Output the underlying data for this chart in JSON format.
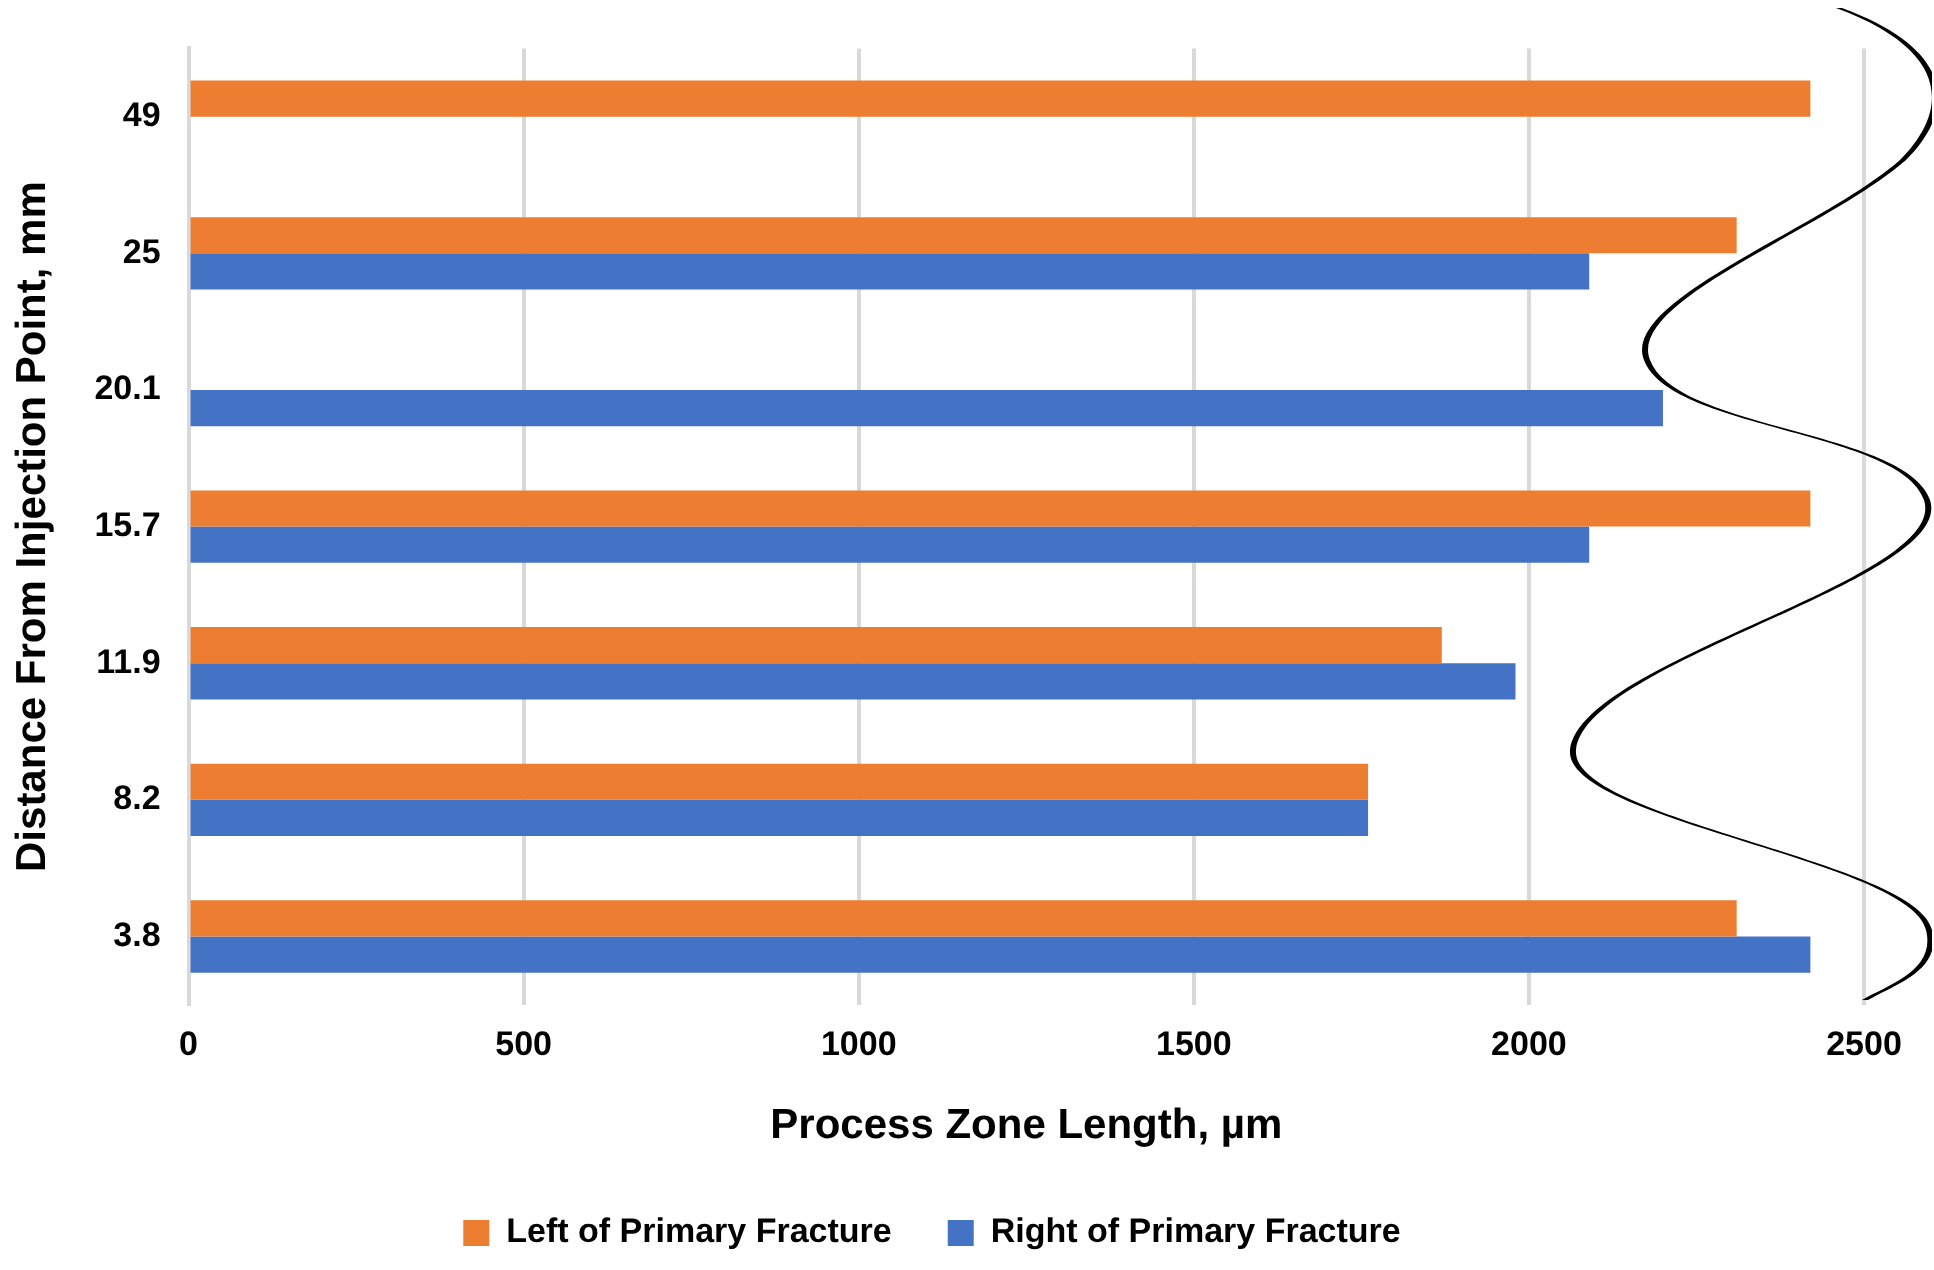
{
  "chart_data": {
    "type": "bar",
    "orientation": "horizontal",
    "xlabel": "Process Zone Length, µm",
    "ylabel": "Distance From Injection Point, mm",
    "categories": [
      "49",
      "25",
      "20.1",
      "15.7",
      "11.9",
      "8.2",
      "3.8"
    ],
    "series": [
      {
        "name": "Left of Primary Fracture",
        "color": "#ed7d31",
        "values": [
          2420,
          2310,
          null,
          2420,
          1870,
          1760,
          2310
        ]
      },
      {
        "name": "Right of Primary Fracture",
        "color": "#4472c4",
        "values": [
          null,
          2090,
          2200,
          2090,
          1980,
          1760,
          2420
        ]
      }
    ],
    "xlim": [
      0,
      2500
    ],
    "xticks": [
      0,
      500,
      1000,
      1500,
      2000,
      2500
    ],
    "grid": "x",
    "legend": "bottom"
  }
}
